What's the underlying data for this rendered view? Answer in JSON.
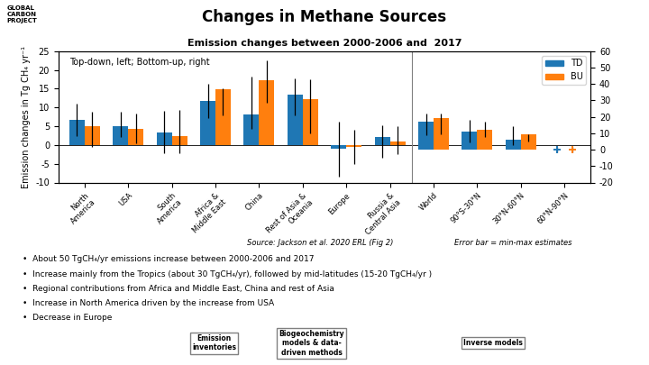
{
  "chart_data": {
    "type": "bar",
    "title": "Changes in Methane Sources",
    "subtitle": "Emission changes between 2000-2006 and  2017",
    "y_label": "Emission changes in Tg CH₄ yr⁻¹",
    "annotation": "Top-down, left; Bottom-up, right",
    "categories": [
      "North\nAmerica",
      "USA",
      "South\nAmerica",
      "Africa &\nMiddle East",
      "China",
      "Rest of Asia &\nOceania",
      "Europe",
      "Russia &\nCentral Asia",
      "World",
      "90°S-30°N",
      "30°N-60°N",
      "60°N-90°N"
    ],
    "series": [
      {
        "name": "TD",
        "axis": "y",
        "values": [
          6.7,
          5.1,
          3.3,
          11.7,
          8.2,
          13.3,
          -0.9,
          2.2,
          null,
          null,
          null,
          null
        ],
        "err_lo": [
          4.4,
          3.0,
          5.5,
          4.5,
          4.0,
          5.5,
          7.5,
          5.5,
          null,
          null,
          null,
          null
        ],
        "err_hi": [
          4.3,
          3.8,
          5.9,
          4.5,
          10.0,
          4.5,
          7.0,
          3.0,
          null,
          null,
          null,
          null
        ]
      },
      {
        "name": "BU",
        "axis": "y",
        "values": [
          4.9,
          4.4,
          2.3,
          14.8,
          17.2,
          12.1,
          -0.5,
          1.0,
          null,
          null,
          null,
          null
        ],
        "err_lo": [
          5.5,
          4.0,
          4.5,
          7.0,
          6.0,
          9.0,
          4.5,
          3.5,
          null,
          null,
          null,
          null
        ],
        "err_hi": [
          4.0,
          4.0,
          7.0,
          0.3,
          5.3,
          5.5,
          4.5,
          4.0,
          null,
          null,
          null,
          null
        ]
      },
      {
        "name": "TD",
        "axis": "y2",
        "marker": "+",
        "values": [
          null,
          null,
          null,
          null,
          null,
          null,
          null,
          null,
          16.8,
          11.1,
          5.8,
          0.0
        ],
        "err_lo": [
          null,
          null,
          null,
          null,
          null,
          null,
          null,
          null,
          8.0,
          6.5,
          3.0,
          1.5
        ],
        "err_hi": [
          null,
          null,
          null,
          null,
          null,
          null,
          null,
          null,
          5.0,
          7.0,
          8.5,
          1.5
        ]
      },
      {
        "name": "BU",
        "axis": "y2",
        "marker": "+",
        "values": [
          null,
          null,
          null,
          null,
          null,
          null,
          null,
          null,
          19.0,
          12.2,
          9.2,
          0.0
        ],
        "err_lo": [
          null,
          null,
          null,
          null,
          null,
          null,
          null,
          null,
          9.5,
          4.5,
          4.0,
          1.5
        ],
        "err_hi": [
          null,
          null,
          null,
          null,
          null,
          null,
          null,
          null,
          3.0,
          5.0,
          0.3,
          1.5
        ]
      }
    ],
    "ylim": [
      -10,
      25
    ],
    "yticks": [
      -10,
      -5,
      0,
      5,
      10,
      15,
      20,
      25
    ],
    "y2lim": [
      -20,
      60
    ],
    "y2ticks": [
      -20,
      -10,
      0,
      10,
      20,
      30,
      40,
      50,
      60
    ],
    "grid": false,
    "legend": "upper right",
    "notes": [
      "Error bar = min-max estimates",
      "Source: Jackson et al. 2020 ERL (Fig 2)"
    ],
    "bullets": [
      "•  About 50 TgCH₄/yr emissions increase between 2000-2006 and 2017",
      "•  Increase mainly from the Tropics (about 30 TgCH₄/yr), followed by mid-latitudes (15-20 TgCH₄/yr )",
      "•  Regional contributions from Africa and Middle East, China and rest of Asia",
      "•  Increase in North America driven by the increase from USA",
      "•  Decrease in Europe"
    ],
    "buttons": [
      "Emission\ninventories",
      "Biogeochemistry\nmodels & data-\ndriven methods",
      "Inverse models"
    ],
    "logo_text": "GLOBAL\nCARBON\nPROJECT"
  }
}
